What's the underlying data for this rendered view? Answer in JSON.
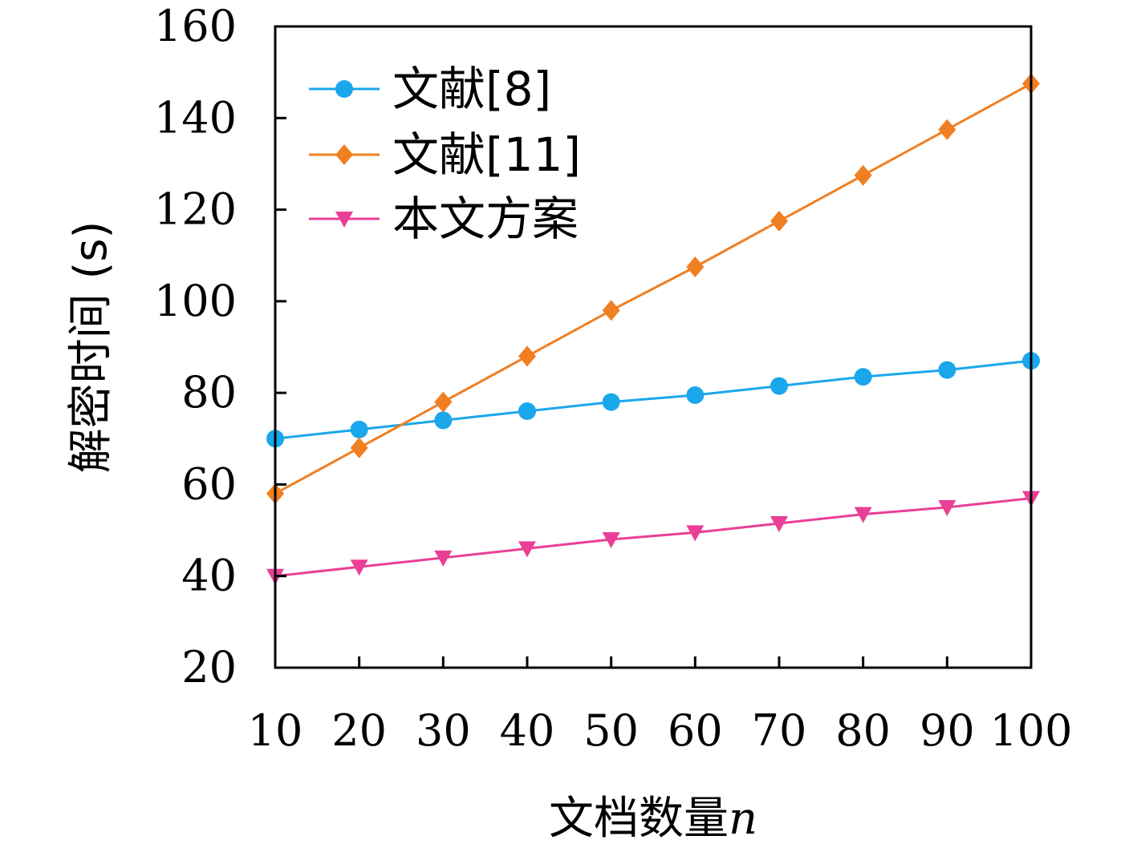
{
  "chart_data": {
    "type": "line",
    "title": "",
    "xlabel": "文档数量",
    "xlabel_var": "n",
    "ylabel": "解密时间 (s)",
    "x": [
      10,
      20,
      30,
      40,
      50,
      60,
      70,
      80,
      90,
      100
    ],
    "xlim": [
      10,
      100
    ],
    "ylim": [
      20,
      160
    ],
    "yticks": [
      20,
      40,
      60,
      80,
      100,
      120,
      140,
      160
    ],
    "grid": false,
    "legend_position": "top-left",
    "series": [
      {
        "name": "文献[8]",
        "color": "#1aa7ec",
        "marker": "circle",
        "values": [
          70,
          72,
          74,
          76,
          78,
          79.5,
          81.5,
          83.5,
          85,
          87
        ]
      },
      {
        "name": "文献[11]",
        "color": "#f07f22",
        "marker": "diamond",
        "values": [
          58,
          68,
          78,
          88,
          98,
          107.5,
          117.5,
          127.5,
          137.5,
          147.5
        ]
      },
      {
        "name": "本文方案",
        "color": "#ea3f96",
        "marker": "triangle-down",
        "values": [
          40,
          42,
          44,
          46,
          48,
          49.5,
          51.5,
          53.5,
          55,
          57
        ]
      }
    ]
  }
}
